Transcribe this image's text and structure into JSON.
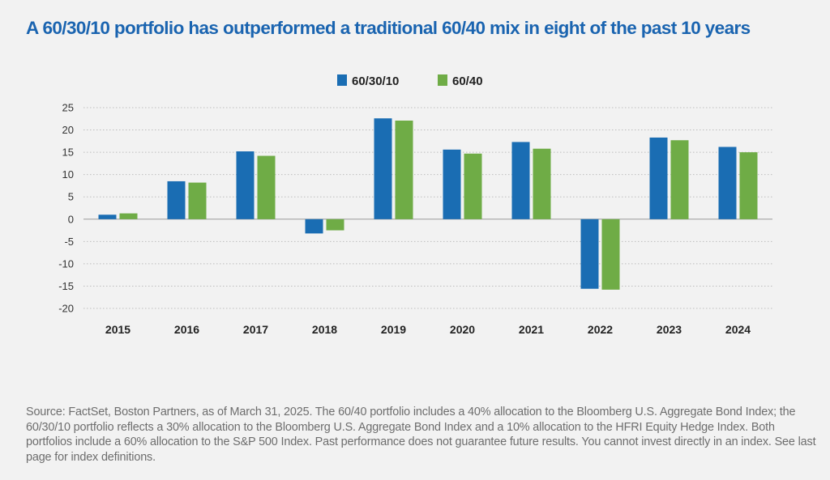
{
  "header": {
    "title": "A 60/30/10 portfolio has outperformed a traditional 60/40 mix in eight of the past 10 years"
  },
  "chart_data": {
    "type": "bar",
    "categories": [
      "2015",
      "2016",
      "2017",
      "2018",
      "2019",
      "2020",
      "2021",
      "2022",
      "2023",
      "2024"
    ],
    "series": [
      {
        "name": "60/30/10",
        "color": "#1a6db3",
        "values": [
          1.0,
          8.5,
          15.2,
          -3.2,
          22.6,
          15.6,
          17.3,
          -15.6,
          18.3,
          16.2
        ]
      },
      {
        "name": "60/40",
        "color": "#6fac46",
        "values": [
          1.3,
          8.2,
          14.2,
          -2.5,
          22.1,
          14.7,
          15.8,
          -15.8,
          17.7,
          15.0
        ]
      }
    ],
    "yticks": [
      25,
      20,
      15,
      10,
      5,
      0,
      -5,
      -10,
      -15,
      -20
    ],
    "ylim": [
      -20,
      25
    ],
    "grid": true,
    "legend_position": "top-center"
  },
  "footer": {
    "source": "Source: FactSet, Boston Partners, as of March 31, 2025. The 60/40 portfolio includes a 40% allocation to the Bloomberg U.S. Aggregate Bond Index; the 60/30/10 portfolio reflects a 30% allocation to the Bloomberg U.S. Aggregate Bond Index and a 10% allocation to the HFRI Equity Hedge Index. Both portfolios include a 60% allocation to the S&P 500 Index. Past performance does not guarantee future results. You cannot invest directly in an index. See last page for index definitions."
  }
}
